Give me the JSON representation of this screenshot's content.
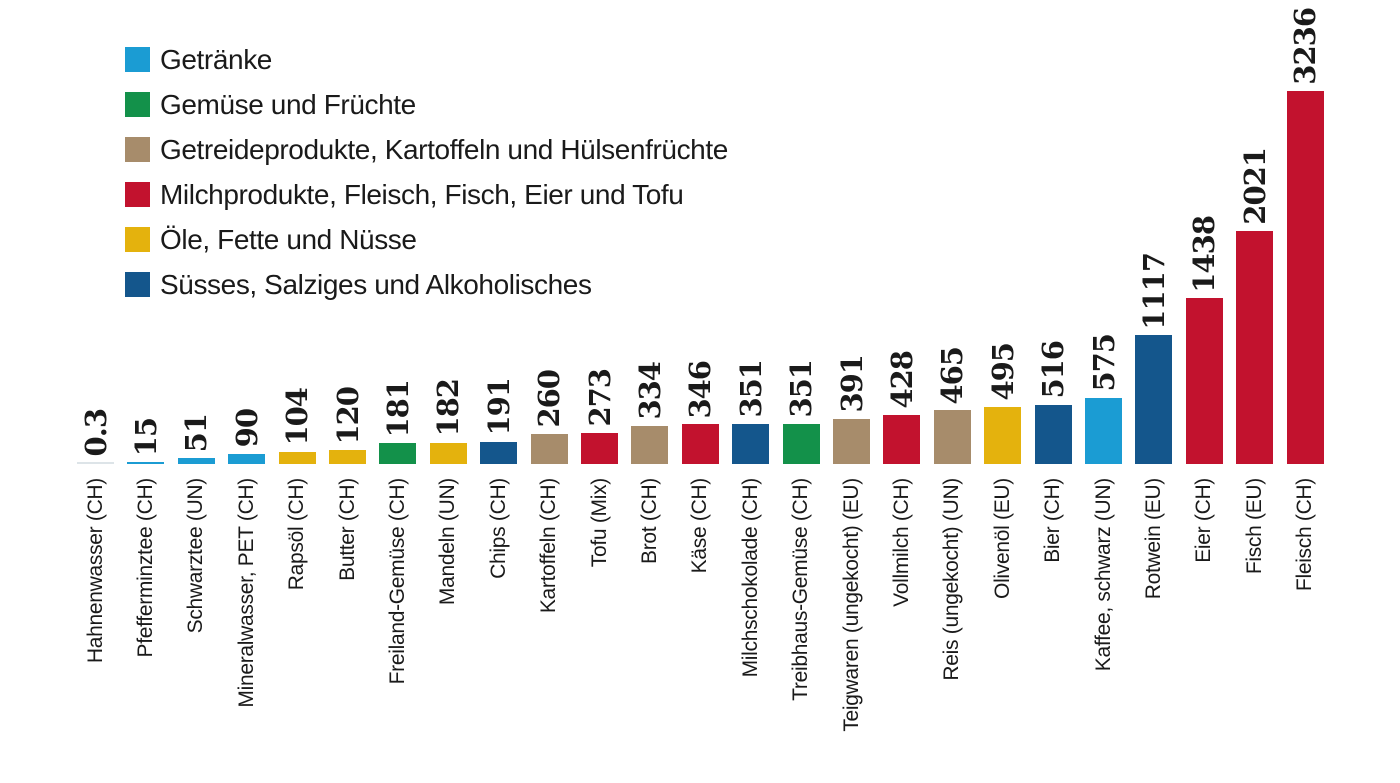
{
  "chart_data": {
    "type": "bar",
    "title": "",
    "xlabel": "",
    "ylabel": "",
    "ylim": [
      0,
      3236
    ],
    "grid": false,
    "axis_lines": false,
    "legend_position": "top-left",
    "bar_value_labels": "rotated-90-above-bars",
    "x_tick_labels": "rotated-90-below-baseline",
    "colors": {
      "getraenke": "#1b9cd3",
      "gemuese": "#13914a",
      "getreide": "#a78c6b",
      "milch": "#c2122e",
      "oele": "#e4b20d",
      "suesses": "#14568c",
      "tiny_bar": "#dde4e8",
      "text": "#1a1a1a"
    },
    "legend": [
      {
        "label": "Getränke",
        "category": "getraenke"
      },
      {
        "label": "Gemüse und Früchte",
        "category": "gemuese"
      },
      {
        "label": "Getreideprodukte, Kartoffeln und Hülsenfrüchte",
        "category": "getreide"
      },
      {
        "label": "Milchprodukte, Fleisch, Fisch, Eier und Tofu",
        "category": "milch"
      },
      {
        "label": "Öle, Fette und Nüsse",
        "category": "oele"
      },
      {
        "label": "Süsses, Salziges und Alkoholisches",
        "category": "suesses"
      }
    ],
    "bars": [
      {
        "label": "Hahnenwasser (CH)",
        "value": 0.3,
        "value_label": "0.3",
        "category": "getraenke"
      },
      {
        "label": "Pfefferminztee (CH)",
        "value": 15,
        "value_label": "15",
        "category": "getraenke"
      },
      {
        "label": "Schwarztee (UN)",
        "value": 51,
        "value_label": "51",
        "category": "getraenke"
      },
      {
        "label": "Mineralwasser, PET (CH)",
        "value": 90,
        "value_label": "90",
        "category": "getraenke"
      },
      {
        "label": "Rapsöl (CH)",
        "value": 104,
        "value_label": "104",
        "category": "oele"
      },
      {
        "label": "Butter (CH)",
        "value": 120,
        "value_label": "120",
        "category": "oele"
      },
      {
        "label": "Freiland-Gemüse (CH)",
        "value": 181,
        "value_label": "181",
        "category": "gemuese"
      },
      {
        "label": "Mandeln (UN)",
        "value": 182,
        "value_label": "182",
        "category": "oele"
      },
      {
        "label": "Chips (CH)",
        "value": 191,
        "value_label": "191",
        "category": "suesses"
      },
      {
        "label": "Kartoffeln (CH)",
        "value": 260,
        "value_label": "260",
        "category": "getreide"
      },
      {
        "label": "Tofu (Mix)",
        "value": 273,
        "value_label": "273",
        "category": "milch"
      },
      {
        "label": "Brot (CH)",
        "value": 334,
        "value_label": "334",
        "category": "getreide"
      },
      {
        "label": "Käse (CH)",
        "value": 346,
        "value_label": "346",
        "category": "milch"
      },
      {
        "label": "Milchschokolade (CH)",
        "value": 351,
        "value_label": "351",
        "category": "suesses"
      },
      {
        "label": "Treibhaus-Gemüse (CH)",
        "value": 351,
        "value_label": "351",
        "category": "gemuese"
      },
      {
        "label": "Teigwaren (ungekocht) (EU)",
        "value": 391,
        "value_label": "391",
        "category": "getreide"
      },
      {
        "label": "Vollmilch (CH)",
        "value": 428,
        "value_label": "428",
        "category": "milch"
      },
      {
        "label": "Reis (ungekocht) (UN)",
        "value": 465,
        "value_label": "465",
        "category": "getreide"
      },
      {
        "label": "Olivenöl (EU)",
        "value": 495,
        "value_label": "495",
        "category": "oele"
      },
      {
        "label": "Bier (CH)",
        "value": 516,
        "value_label": "516",
        "category": "suesses"
      },
      {
        "label": "Kaffee, schwarz (UN)",
        "value": 575,
        "value_label": "575",
        "category": "getraenke"
      },
      {
        "label": "Rotwein (EU)",
        "value": 1117,
        "value_label": "1117",
        "category": "suesses"
      },
      {
        "label": "Eier (CH)",
        "value": 1438,
        "value_label": "1438",
        "category": "milch"
      },
      {
        "label": "Fisch (EU)",
        "value": 2021,
        "value_label": "2021",
        "category": "milch"
      },
      {
        "label": "Fleisch (CH)",
        "value": 3236,
        "value_label": "3236",
        "category": "milch"
      }
    ]
  }
}
